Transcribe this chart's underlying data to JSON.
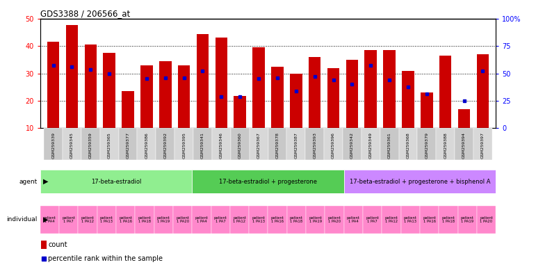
{
  "title": "GDS3388 / 206566_at",
  "gsm_ids": [
    "GSM259339",
    "GSM259345",
    "GSM259359",
    "GSM259365",
    "GSM259377",
    "GSM259386",
    "GSM259392",
    "GSM259395",
    "GSM259341",
    "GSM259346",
    "GSM259360",
    "GSM259367",
    "GSM259378",
    "GSM259387",
    "GSM259393",
    "GSM259396",
    "GSM259342",
    "GSM259349",
    "GSM259361",
    "GSM259368",
    "GSM259379",
    "GSM259388",
    "GSM259394",
    "GSM259397"
  ],
  "counts": [
    41.5,
    47.8,
    40.5,
    37.5,
    23.5,
    33.0,
    34.5,
    33.0,
    44.5,
    43.0,
    21.8,
    39.5,
    32.5,
    29.8,
    36.0,
    32.0,
    35.0,
    38.5,
    38.5,
    31.0,
    23.0,
    36.5,
    17.0,
    37.0
  ],
  "percentiles": [
    33.0,
    32.5,
    31.5,
    30.0,
    null,
    28.0,
    28.5,
    28.5,
    31.0,
    21.5,
    21.5,
    28.0,
    28.5,
    23.5,
    29.0,
    27.5,
    26.0,
    33.0,
    27.5,
    25.0,
    22.5,
    null,
    20.0,
    31.0
  ],
  "agents": [
    {
      "label": "17-beta-estradiol",
      "start": 0,
      "end": 8,
      "color": "#90EE90"
    },
    {
      "label": "17-beta-estradiol + progesterone",
      "start": 8,
      "end": 16,
      "color": "#55CC55"
    },
    {
      "label": "17-beta-estradiol + progesterone + bisphenol A",
      "start": 16,
      "end": 24,
      "color": "#CC88FF"
    }
  ],
  "individuals": [
    "patient\n1 PA4",
    "patient\n1 PA7",
    "patient\n1 PA12",
    "patient\n1 PA13",
    "patient\n1 PA16",
    "patient\n1 PA18",
    "patient\n1 PA19",
    "patient\n1 PA20",
    "patient\n1 PA4",
    "patient\n1 PA7",
    "patient\n1 PA12",
    "patient\n1 PA13",
    "patient\n1 PA16",
    "patient\n1 PA18",
    "patient\n1 PA19",
    "patient\n1 PA20",
    "patient\n1 PA4",
    "patient\n1 PA7",
    "patient\n1 PA12",
    "patient\n1 PA13",
    "patient\n1 PA16",
    "patient\n1 PA18",
    "patient\n1 PA19",
    "patient\n1 PA20"
  ],
  "bar_color": "#CC0000",
  "dot_color": "#0000CC",
  "ylim_left": [
    10,
    50
  ],
  "ylim_right": [
    0,
    100
  ],
  "yticks_left": [
    10,
    20,
    30,
    40,
    50
  ],
  "yticks_right": [
    0,
    25,
    50,
    75,
    100
  ],
  "xtick_bg": "#D0D0D0",
  "indiv_color": "#FF88CC",
  "fig_width": 7.71,
  "fig_height": 3.84
}
